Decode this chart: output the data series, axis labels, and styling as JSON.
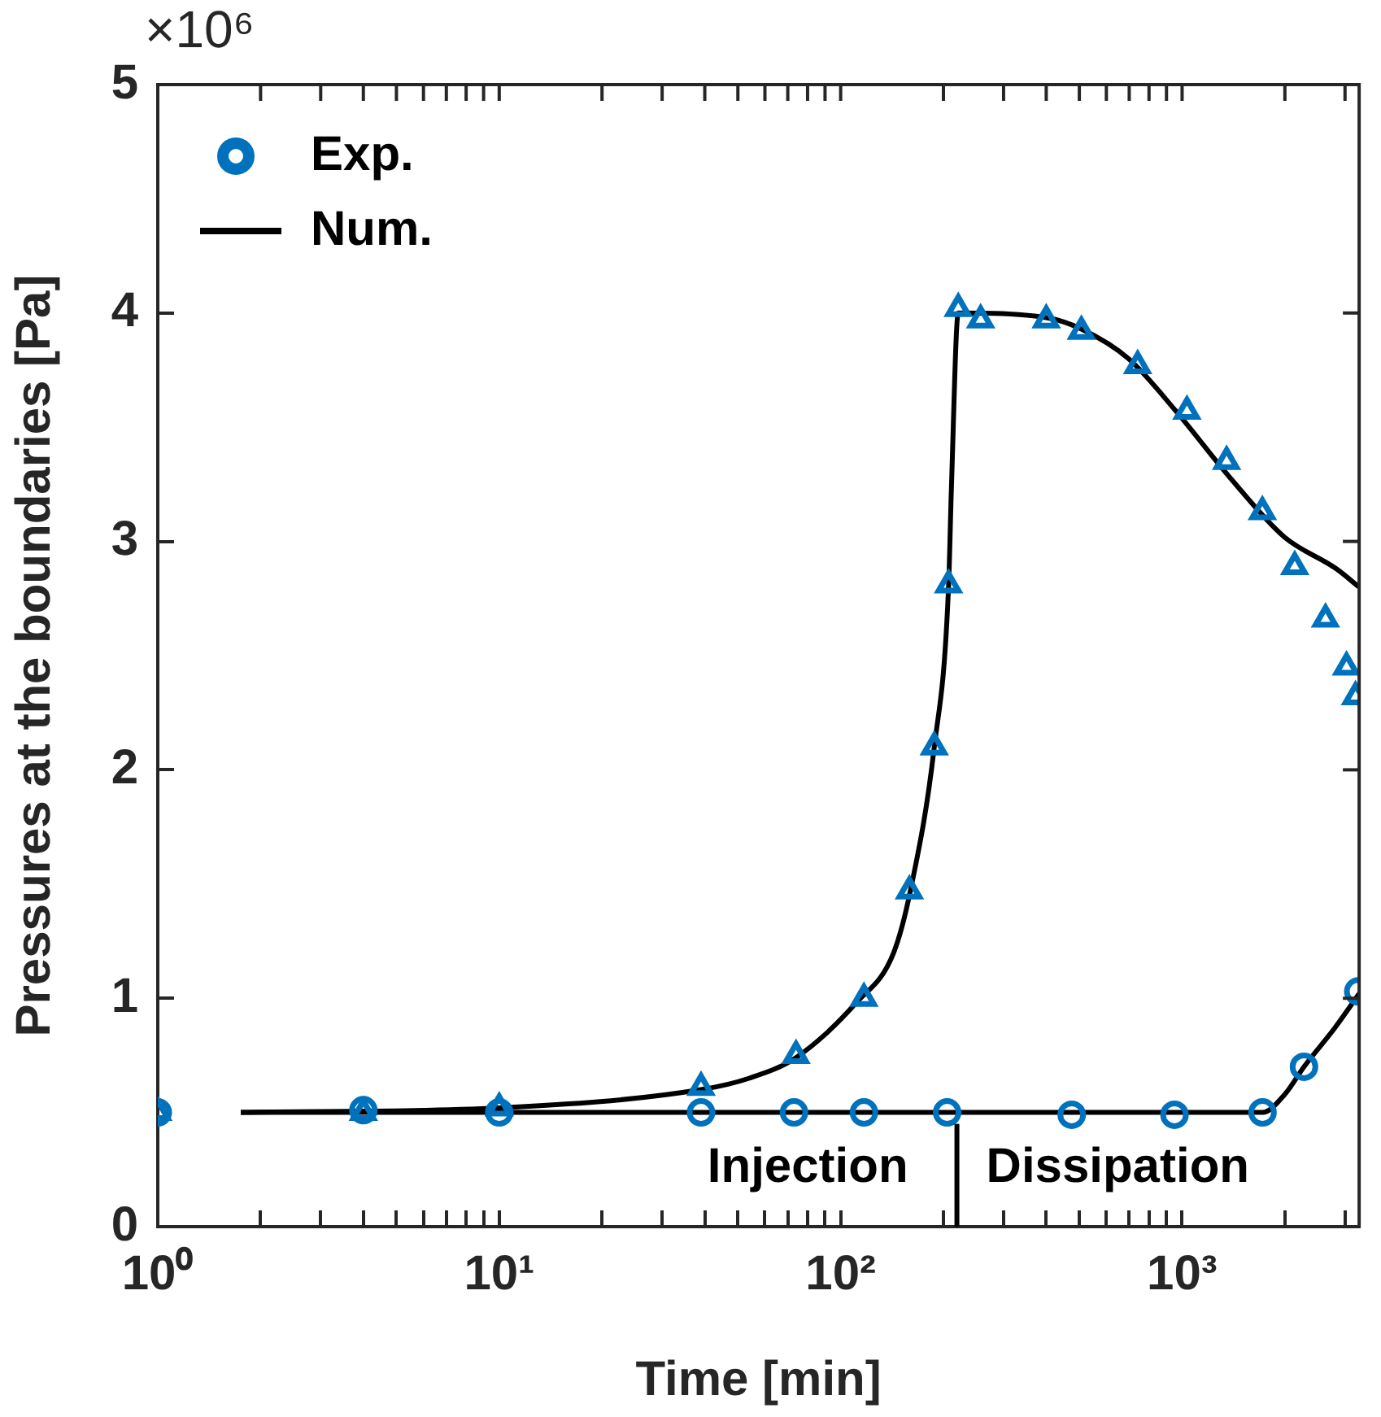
{
  "chart_data": {
    "type": "scatter",
    "xlabel": "Time [min]",
    "ylabel": "Pressures at the boundaries [Pa]",
    "log": "x",
    "grid": false,
    "legend": "top left",
    "xlim": [
      1,
      3300
    ],
    "ylim": [
      0,
      5
    ],
    "xticks": [
      {
        "value": 1,
        "label": "10⁰"
      },
      {
        "value": 2,
        "label": null
      },
      {
        "value": 3,
        "label": null
      },
      {
        "value": 4,
        "label": null
      },
      {
        "value": 5,
        "label": null
      },
      {
        "value": 6,
        "label": null
      },
      {
        "value": 7,
        "label": null
      },
      {
        "value": 8,
        "label": null
      },
      {
        "value": 9,
        "label": null
      },
      {
        "value": 10,
        "label": "10¹"
      },
      {
        "value": 20,
        "label": null
      },
      {
        "value": 30,
        "label": null
      },
      {
        "value": 40,
        "label": null
      },
      {
        "value": 50,
        "label": null
      },
      {
        "value": 60,
        "label": null
      },
      {
        "value": 70,
        "label": null
      },
      {
        "value": 80,
        "label": null
      },
      {
        "value": 90,
        "label": null
      },
      {
        "value": 100,
        "label": "10²"
      },
      {
        "value": 200,
        "label": null
      },
      {
        "value": 300,
        "label": null
      },
      {
        "value": 400,
        "label": null
      },
      {
        "value": 500,
        "label": null
      },
      {
        "value": 600,
        "label": null
      },
      {
        "value": 700,
        "label": null
      },
      {
        "value": 800,
        "label": null
      },
      {
        "value": 900,
        "label": null
      },
      {
        "value": 1000,
        "label": "10³"
      },
      {
        "value": 2000,
        "label": null
      },
      {
        "value": 3000,
        "label": null
      }
    ],
    "yticks": [
      0,
      1,
      2,
      3,
      4,
      5
    ],
    "series": [
      {
        "name": "Exp.",
        "marker": "circle",
        "color": "#0072bd",
        "x": [
          1,
          4,
          10,
          39,
          73,
          117,
          205,
          475,
          950,
          1720,
          2275,
          3280
        ],
        "values": [
          0.5,
          0.51,
          0.5,
          0.5,
          0.5,
          0.5,
          0.5,
          0.49,
          0.49,
          0.5,
          0.7,
          1.03
        ]
      },
      {
        "marker": "triangle",
        "color": "#0072bd",
        "x": [
          1,
          4,
          10,
          39,
          74,
          117,
          159,
          188,
          207,
          221,
          257,
          400,
          507,
          741,
          1033,
          1350,
          1718,
          2137,
          2630,
          3030,
          3220
        ],
        "values": [
          0.5,
          0.5,
          0.52,
          0.61,
          0.75,
          1.0,
          1.47,
          2.1,
          2.81,
          4.02,
          3.97,
          3.97,
          3.92,
          3.77,
          3.57,
          3.35,
          3.13,
          2.89,
          2.66,
          2.45,
          2.32
        ]
      },
      {
        "name": "Num.",
        "type": "line",
        "marker": "none",
        "line_style": "solid",
        "color": "#000000",
        "x": [
          1.75,
          10,
          39,
          54,
          74,
          111,
          143,
          160,
          188,
          207,
          211,
          221,
          400,
          507,
          697,
          960,
          1380,
          1990,
          2830,
          3300
        ],
        "values": [
          0.5,
          0.52,
          0.6,
          0.65,
          0.74,
          0.98,
          1.2,
          1.47,
          2.1,
          2.8,
          3.23,
          4.0,
          3.98,
          3.93,
          3.8,
          3.57,
          3.28,
          3.02,
          2.88,
          2.8
        ]
      },
      {
        "type": "line",
        "marker": "none",
        "line_style": "solid",
        "color": "#000000",
        "x": [
          1.75,
          1720,
          2000,
          2275,
          2800,
          3300
        ],
        "values": [
          0.5,
          0.5,
          0.58,
          0.7,
          0.87,
          1.02
        ]
      }
    ],
    "ref_lines": [
      {
        "axis": "x",
        "value": 219,
        "color": "#000000",
        "line_style": "solid"
      }
    ],
    "annotations": [
      "×10⁶",
      "Injection",
      "Dissipation"
    ]
  }
}
